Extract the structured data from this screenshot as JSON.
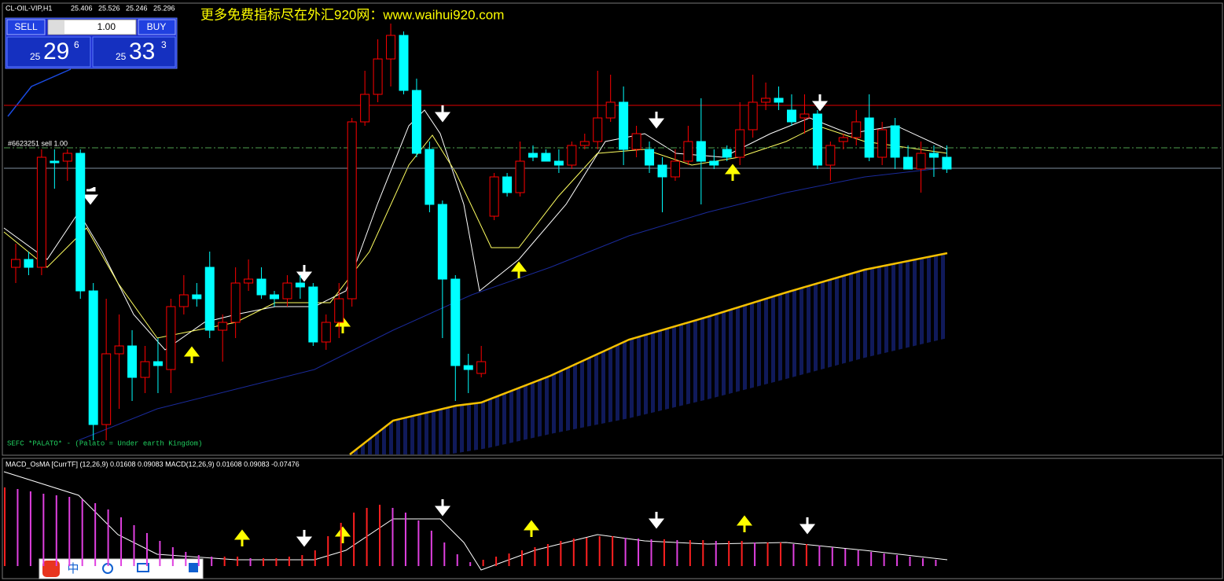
{
  "header": {
    "symbol": "CL-OIL-VIP,H1",
    "open": "25.406",
    "high": "25.526",
    "low": "25.246",
    "close": "25.296"
  },
  "trade_panel": {
    "sell": "SELL",
    "buy": "BUY",
    "lots": "1.00",
    "sell_big": "25",
    "sell_main": "29",
    "sell_sup": "6",
    "buy_big": "25",
    "buy_main": "33",
    "buy_sup": "3"
  },
  "watermark": "更多免费指标尽在外汇920网：www.waihui920.com",
  "order_label": "#6623251 sell 1.00",
  "indicator_label": "SEFC *PALATO* - (Palato = Under earth Kingdom)",
  "macd_label": "MACD_OsMA [CurrTF] (12,26,9) 0.01608 0.09083  MACD(12,26,9) 0.01608 0.09083 -0.07476",
  "ime_label": "中",
  "chart_data": {
    "type": "candlestick",
    "up_color": "#ff0000",
    "down_color": "#00ffff",
    "ylim": [
      20,
      600
    ],
    "open": [
      260,
      270,
      260,
      395,
      395,
      405,
      230,
      60,
      150,
      160,
      120,
      140,
      130,
      210,
      225,
      260,
      180,
      190,
      240,
      245,
      225,
      220,
      240,
      235,
      165,
      190,
      220,
      445,
      480,
      525,
      555,
      485,
      410,
      340,
      245,
      135,
      125,
      325,
      375,
      355,
      405,
      405,
      395,
      390,
      415,
      420,
      450,
      470,
      410,
      410,
      390,
      375,
      395,
      420,
      395,
      410,
      400,
      435,
      470,
      475,
      460,
      450,
      455,
      390,
      420,
      425,
      450,
      400,
      440,
      400,
      385,
      405,
      400
    ],
    "high": [
      290,
      280,
      410,
      410,
      410,
      410,
      240,
      220,
      200,
      180,
      160,
      170,
      220,
      250,
      240,
      280,
      200,
      260,
      270,
      260,
      230,
      250,
      250,
      240,
      200,
      240,
      450,
      510,
      550,
      570,
      560,
      500,
      420,
      345,
      250,
      150,
      160,
      380,
      380,
      420,
      415,
      410,
      410,
      420,
      430,
      510,
      505,
      490,
      440,
      420,
      400,
      410,
      440,
      475,
      410,
      415,
      470,
      505,
      495,
      490,
      480,
      480,
      460,
      420,
      430,
      460,
      480,
      445,
      450,
      415,
      420,
      415,
      415
    ],
    "low": [
      240,
      250,
      250,
      360,
      370,
      220,
      40,
      40,
      80,
      90,
      100,
      100,
      100,
      200,
      210,
      170,
      140,
      170,
      230,
      220,
      210,
      210,
      220,
      160,
      155,
      170,
      210,
      440,
      470,
      490,
      480,
      400,
      330,
      170,
      90,
      100,
      120,
      320,
      350,
      350,
      395,
      395,
      380,
      385,
      410,
      410,
      445,
      390,
      400,
      380,
      330,
      370,
      390,
      340,
      385,
      395,
      390,
      425,
      460,
      460,
      440,
      430,
      385,
      370,
      410,
      415,
      395,
      390,
      385,
      385,
      355,
      375,
      380
    ],
    "close": [
      270,
      260,
      400,
      393,
      405,
      230,
      60,
      150,
      160,
      120,
      140,
      135,
      210,
      225,
      220,
      180,
      190,
      240,
      245,
      225,
      220,
      240,
      235,
      165,
      190,
      220,
      445,
      480,
      525,
      555,
      485,
      405,
      340,
      245,
      135,
      130,
      140,
      375,
      355,
      395,
      400,
      395,
      390,
      415,
      420,
      450,
      470,
      410,
      430,
      390,
      375,
      395,
      420,
      395,
      390,
      400,
      435,
      470,
      475,
      470,
      445,
      455,
      390,
      415,
      425,
      445,
      400,
      435,
      400,
      385,
      405,
      400,
      385
    ]
  },
  "macd": {
    "color_up": "#ff2020",
    "color_down": "#e040e0",
    "ylim": [
      0,
      120
    ],
    "values": [
      100,
      98,
      95,
      92,
      90,
      88,
      85,
      80,
      72,
      62,
      52,
      42,
      32,
      24,
      18,
      14,
      12,
      12,
      12,
      10,
      10,
      10,
      12,
      14,
      20,
      38,
      55,
      68,
      74,
      78,
      74,
      68,
      58,
      45,
      30,
      15,
      5,
      8,
      12,
      16,
      20,
      24,
      28,
      32,
      35,
      36,
      38,
      38,
      36,
      35,
      34,
      34,
      33,
      33,
      33,
      32,
      32,
      32,
      30,
      30,
      30,
      28,
      28,
      26,
      24,
      22,
      20,
      18,
      16,
      14,
      12,
      10,
      8
    ]
  }
}
